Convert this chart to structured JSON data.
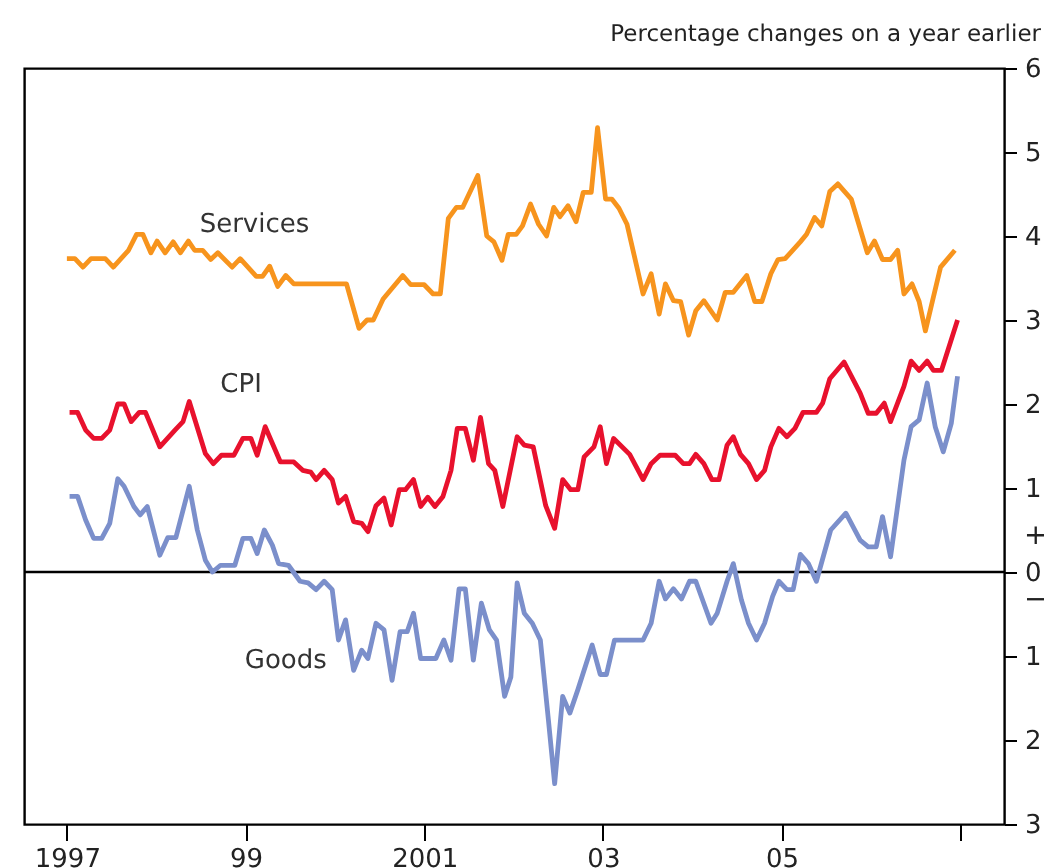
{
  "chart_data": {
    "type": "line",
    "ylabel": "Percentage changes on a year earlier",
    "annotations": [
      "+",
      "−"
    ],
    "xlim": [
      1996.52,
      2007.49
    ],
    "xticks": [
      1997,
      {
        "value": 1999,
        "label": "99"
      },
      2001,
      {
        "value": 2003,
        "label": "03"
      },
      {
        "value": 2005,
        "label": "05"
      },
      {
        "value": 2007,
        "label": null
      }
    ],
    "ylim": [
      -3,
      6
    ],
    "yticks": [
      6,
      5,
      4,
      3,
      2,
      1,
      0,
      {
        "value": -1,
        "label": "1"
      },
      {
        "value": -2,
        "label": "2"
      },
      {
        "value": -3,
        "label": "3"
      }
    ],
    "ref_lines": [
      {
        "axis": "y",
        "value": 0,
        "color": "#000000"
      }
    ],
    "grid": false,
    "marker": "none",
    "line_style": "solid",
    "series": [
      {
        "name": "Services",
        "color": "#f7941d",
        "x": [
          1997.0,
          1997.09,
          1997.18,
          1997.27,
          1997.43,
          1997.52,
          1997.69,
          1997.78,
          1997.85,
          1997.94,
          1998.01,
          1998.1,
          1998.19,
          1998.27,
          1998.36,
          1998.43,
          1998.52,
          1998.61,
          1998.69,
          1998.85,
          1998.94,
          1999.12,
          1999.19,
          1999.27,
          1999.36,
          1999.45,
          1999.54,
          2000.13,
          2000.27,
          2000.36,
          2000.43,
          2000.54,
          2000.76,
          2000.85,
          2001.0,
          2001.1,
          2001.18,
          2001.27,
          2001.36,
          2001.43,
          2001.6,
          2001.7,
          2001.78,
          2001.87,
          2001.94,
          2002.03,
          2002.1,
          2002.19,
          2002.28,
          2002.37,
          2002.45,
          2002.52,
          2002.61,
          2002.7,
          2002.78,
          2002.87,
          2002.94,
          2003.03,
          2003.1,
          2003.18,
          2003.27,
          2003.45,
          2003.54,
          2003.63,
          2003.7,
          2003.79,
          2003.87,
          2003.96,
          2004.04,
          2004.13,
          2004.28,
          2004.37,
          2004.46,
          2004.61,
          2004.7,
          2004.78,
          2004.88,
          2004.96,
          2005.04,
          2005.21,
          2005.28,
          2005.37,
          2005.45,
          2005.54,
          2005.63,
          2005.78,
          2005.96,
          2006.04,
          2006.13,
          2006.22,
          2006.3,
          2006.37,
          2006.46,
          2006.54,
          2006.61,
          2006.69,
          2006.78,
          2006.94
        ],
        "values": [
          3.73,
          3.73,
          3.63,
          3.73,
          3.73,
          3.63,
          3.83,
          4.02,
          4.02,
          3.8,
          3.94,
          3.8,
          3.93,
          3.8,
          3.94,
          3.83,
          3.83,
          3.72,
          3.8,
          3.63,
          3.73,
          3.52,
          3.52,
          3.64,
          3.4,
          3.53,
          3.43,
          3.43,
          2.9,
          3.0,
          3.0,
          3.25,
          3.53,
          3.42,
          3.42,
          3.31,
          3.31,
          4.21,
          4.34,
          4.34,
          4.72,
          4.0,
          3.93,
          3.71,
          4.02,
          4.02,
          4.12,
          4.38,
          4.14,
          4.0,
          4.34,
          4.23,
          4.36,
          4.17,
          4.52,
          4.52,
          5.29,
          4.44,
          4.44,
          4.33,
          4.14,
          3.31,
          3.55,
          3.07,
          3.43,
          3.23,
          3.22,
          2.82,
          3.11,
          3.23,
          3.0,
          3.33,
          3.33,
          3.53,
          3.22,
          3.22,
          3.55,
          3.72,
          3.73,
          3.93,
          4.02,
          4.22,
          4.12,
          4.53,
          4.62,
          4.44,
          3.8,
          3.94,
          3.72,
          3.72,
          3.83,
          3.31,
          3.43,
          3.22,
          2.87,
          3.23,
          3.63,
          3.83
        ]
      },
      {
        "name": "CPI",
        "color": "#e8112d",
        "x": [
          1997.03,
          1997.12,
          1997.21,
          1997.3,
          1997.39,
          1997.48,
          1997.57,
          1997.64,
          1997.72,
          1997.81,
          1997.88,
          1998.04,
          1998.21,
          1998.3,
          1998.37,
          1998.55,
          1998.64,
          1998.73,
          1998.87,
          1998.97,
          1999.06,
          1999.13,
          1999.22,
          1999.39,
          1999.54,
          1999.64,
          1999.73,
          1999.79,
          1999.88,
          1999.97,
          2000.04,
          2000.12,
          2000.21,
          2000.3,
          2000.37,
          2000.46,
          2000.55,
          2000.63,
          2000.72,
          2000.79,
          2000.88,
          2000.96,
          2001.04,
          2001.12,
          2001.21,
          2001.3,
          2001.37,
          2001.46,
          2001.55,
          2001.63,
          2001.72,
          2001.79,
          2001.88,
          2002.04,
          2002.12,
          2002.22,
          2002.36,
          2002.46,
          2002.55,
          2002.64,
          2002.72,
          2002.79,
          2002.9,
          2002.97,
          2003.04,
          2003.12,
          2003.3,
          2003.45,
          2003.54,
          2003.64,
          2003.81,
          2003.9,
          2003.97,
          2004.04,
          2004.13,
          2004.22,
          2004.3,
          2004.39,
          2004.46,
          2004.54,
          2004.63,
          2004.72,
          2004.81,
          2004.88,
          2004.97,
          2005.06,
          2005.15,
          2005.24,
          2005.39,
          2005.46,
          2005.54,
          2005.7,
          2005.88,
          2005.97,
          2006.06,
          2006.15,
          2006.22,
          2006.37,
          2006.45,
          2006.54,
          2006.63,
          2006.7,
          2006.79,
          2006.97
        ],
        "values": [
          1.9,
          1.9,
          1.69,
          1.59,
          1.59,
          1.69,
          2.0,
          2.0,
          1.79,
          1.9,
          1.9,
          1.49,
          1.69,
          1.79,
          2.03,
          1.41,
          1.29,
          1.39,
          1.39,
          1.59,
          1.59,
          1.39,
          1.73,
          1.31,
          1.31,
          1.21,
          1.19,
          1.1,
          1.21,
          1.1,
          0.82,
          0.9,
          0.6,
          0.58,
          0.48,
          0.79,
          0.88,
          0.56,
          0.98,
          0.98,
          1.1,
          0.78,
          0.89,
          0.78,
          0.9,
          1.21,
          1.71,
          1.71,
          1.33,
          1.84,
          1.29,
          1.21,
          0.78,
          1.61,
          1.51,
          1.49,
          0.79,
          0.52,
          1.1,
          0.98,
          0.98,
          1.37,
          1.49,
          1.73,
          1.29,
          1.59,
          1.4,
          1.1,
          1.29,
          1.39,
          1.39,
          1.29,
          1.29,
          1.4,
          1.29,
          1.1,
          1.1,
          1.51,
          1.61,
          1.4,
          1.29,
          1.1,
          1.21,
          1.49,
          1.71,
          1.61,
          1.71,
          1.9,
          1.9,
          2.01,
          2.3,
          2.5,
          2.13,
          1.89,
          1.89,
          2.01,
          1.79,
          2.21,
          2.51,
          2.4,
          2.51,
          2.4,
          2.4,
          3.0
        ]
      },
      {
        "name": "Goods",
        "color": "#7b8fcb",
        "x": [
          1997.03,
          1997.12,
          1997.21,
          1997.3,
          1997.39,
          1997.48,
          1997.57,
          1997.64,
          1997.75,
          1997.82,
          1997.9,
          1998.04,
          1998.13,
          1998.22,
          1998.37,
          1998.46,
          1998.55,
          1998.63,
          1998.72,
          1998.88,
          1998.97,
          1999.06,
          1999.13,
          1999.21,
          1999.3,
          1999.37,
          1999.48,
          1999.61,
          1999.7,
          1999.79,
          1999.88,
          1999.97,
          2000.04,
          2000.12,
          2000.21,
          2000.3,
          2000.37,
          2000.46,
          2000.55,
          2000.64,
          2000.73,
          2000.81,
          2000.88,
          2000.96,
          2001.13,
          2001.22,
          2001.3,
          2001.39,
          2001.46,
          2001.55,
          2001.64,
          2001.73,
          2001.81,
          2001.9,
          2001.97,
          2002.04,
          2002.12,
          2002.21,
          2002.3,
          2002.39,
          2002.46,
          2002.55,
          2002.63,
          2002.72,
          2002.88,
          2002.97,
          2003.04,
          2003.13,
          2003.45,
          2003.54,
          2003.63,
          2003.7,
          2003.79,
          2003.88,
          2003.97,
          2004.04,
          2004.21,
          2004.28,
          2004.39,
          2004.46,
          2004.55,
          2004.63,
          2004.72,
          2004.81,
          2004.9,
          2004.97,
          2005.06,
          2005.13,
          2005.21,
          2005.3,
          2005.39,
          2005.55,
          2005.72,
          2005.88,
          2005.97,
          2006.06,
          2006.13,
          2006.22,
          2006.37,
          2006.45,
          2006.54,
          2006.63,
          2006.72,
          2006.81,
          2006.9,
          2006.97
        ],
        "values": [
          0.9,
          0.9,
          0.62,
          0.4,
          0.4,
          0.58,
          1.11,
          1.02,
          0.78,
          0.68,
          0.78,
          0.2,
          0.41,
          0.41,
          1.02,
          0.5,
          0.14,
          0.0,
          0.08,
          0.08,
          0.4,
          0.4,
          0.22,
          0.5,
          0.32,
          0.1,
          0.08,
          -0.11,
          -0.13,
          -0.21,
          -0.11,
          -0.21,
          -0.81,
          -0.57,
          -1.17,
          -0.93,
          -1.03,
          -0.61,
          -0.69,
          -1.29,
          -0.71,
          -0.71,
          -0.49,
          -1.03,
          -1.03,
          -0.81,
          -1.05,
          -0.2,
          -0.2,
          -1.05,
          -0.37,
          -0.69,
          -0.81,
          -1.48,
          -1.25,
          -0.13,
          -0.49,
          -0.61,
          -0.81,
          -1.76,
          -2.52,
          -1.48,
          -1.68,
          -1.4,
          -0.87,
          -1.22,
          -1.22,
          -0.81,
          -0.81,
          -0.61,
          -0.11,
          -0.32,
          -0.2,
          -0.32,
          -0.11,
          -0.11,
          -0.61,
          -0.49,
          -0.11,
          0.1,
          -0.33,
          -0.61,
          -0.81,
          -0.61,
          -0.29,
          -0.11,
          -0.21,
          -0.21,
          0.21,
          0.1,
          -0.11,
          0.5,
          0.7,
          0.38,
          0.3,
          0.3,
          0.66,
          0.18,
          1.33,
          1.73,
          1.81,
          2.25,
          1.73,
          1.43,
          1.77,
          2.33
        ]
      }
    ]
  }
}
